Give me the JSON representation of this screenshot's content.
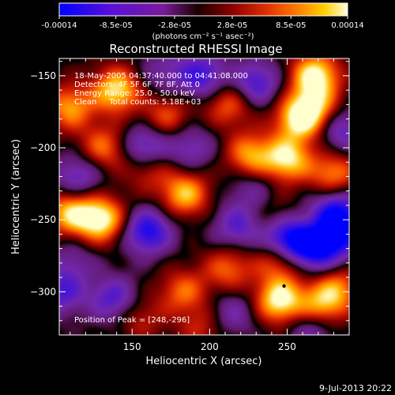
{
  "colorbar": {
    "tick_labels": [
      "-0.00014",
      "-8.5e-05",
      "-2.8e-05",
      "2.8e-05",
      "8.5e-05",
      "0.00014"
    ],
    "tick_values": [
      -0.00014,
      -8.5e-05,
      -2.8e-05,
      2.8e-05,
      8.5e-05,
      0.00014
    ],
    "unit_label": "(photons cm⁻² s⁻¹ asec⁻²)",
    "range": [
      -0.00014,
      0.00014
    ],
    "colors": [
      "#0000ff",
      "#8a2be2",
      "#2a0000",
      "#b41e00",
      "#ff6a00",
      "#ffd000",
      "#ffffe0"
    ]
  },
  "chart_data": {
    "type": "heatmap",
    "title": "Reconstructed RHESSI Image",
    "xlabel": "Heliocentric X (arcsec)",
    "ylabel": "Heliocentric Y (arcsec)",
    "xlim": [
      103,
      290
    ],
    "ylim": [
      -330,
      -138
    ],
    "xticks": [
      150,
      200,
      250
    ],
    "yticks": [
      -150,
      -200,
      -250,
      -300
    ],
    "peak": [
      248,
      -296
    ],
    "annotations": [
      "18-May-2005 04:37:40.000 to 04:41:08.000",
      "Detectors: 4F 5F 6F 7F 8F, Att 0",
      "Energy Range: 25.0 - 50.0 keV",
      "Clean     Total counts: 5.18E+03"
    ],
    "peak_label": "Position of Peak = [248,-296]",
    "blobs": [
      {
        "x": 140,
        "y": -160,
        "v": 0.9
      },
      {
        "x": 110,
        "y": -172,
        "v": 0.7
      },
      {
        "x": 132,
        "y": -200,
        "v": 0.6
      },
      {
        "x": 130,
        "y": -250,
        "v": 1.0
      },
      {
        "x": 110,
        "y": -245,
        "v": 0.8
      },
      {
        "x": 172,
        "y": -178,
        "v": 0.5
      },
      {
        "x": 184,
        "y": -232,
        "v": 0.8
      },
      {
        "x": 183,
        "y": -300,
        "v": 0.55
      },
      {
        "x": 212,
        "y": -284,
        "v": 0.55
      },
      {
        "x": 245,
        "y": -278,
        "v": 0.6
      },
      {
        "x": 226,
        "y": -205,
        "v": 0.7
      },
      {
        "x": 250,
        "y": -208,
        "v": 0.9
      },
      {
        "x": 258,
        "y": -180,
        "v": 0.9
      },
      {
        "x": 268,
        "y": -150,
        "v": 1.0
      },
      {
        "x": 268,
        "y": -172,
        "v": 0.6
      },
      {
        "x": 280,
        "y": -218,
        "v": 0.65
      },
      {
        "x": 212,
        "y": -170,
        "v": 0.55
      },
      {
        "x": 245,
        "y": -306,
        "v": 1.0
      },
      {
        "x": 272,
        "y": -310,
        "v": 0.7
      },
      {
        "x": 283,
        "y": -297,
        "v": 0.55
      },
      {
        "x": 155,
        "y": -318,
        "v": 0.35
      },
      {
        "x": 195,
        "y": -325,
        "v": 0.35
      },
      {
        "x": 160,
        "y": -214,
        "v": 0.45
      },
      {
        "x": 240,
        "y": -245,
        "v": 0.25
      },
      {
        "x": 115,
        "y": -220,
        "v": -0.55
      },
      {
        "x": 158,
        "y": -200,
        "v": -0.7
      },
      {
        "x": 188,
        "y": -200,
        "v": -0.45
      },
      {
        "x": 160,
        "y": -258,
        "v": -0.85
      },
      {
        "x": 104,
        "y": -300,
        "v": -0.6
      },
      {
        "x": 138,
        "y": -305,
        "v": -0.6
      },
      {
        "x": 112,
        "y": -278,
        "v": -0.3
      },
      {
        "x": 218,
        "y": -255,
        "v": -0.55
      },
      {
        "x": 228,
        "y": -230,
        "v": -0.35
      },
      {
        "x": 250,
        "y": -264,
        "v": -1.0
      },
      {
        "x": 268,
        "y": -270,
        "v": -0.9
      },
      {
        "x": 282,
        "y": -245,
        "v": -0.9
      },
      {
        "x": 284,
        "y": -263,
        "v": -0.6
      },
      {
        "x": 195,
        "y": -150,
        "v": -0.7
      },
      {
        "x": 230,
        "y": -155,
        "v": -0.65
      },
      {
        "x": 285,
        "y": -188,
        "v": -0.55
      },
      {
        "x": 170,
        "y": -148,
        "v": -0.35
      },
      {
        "x": 215,
        "y": -315,
        "v": -0.4
      },
      {
        "x": 266,
        "y": -326,
        "v": -0.45
      }
    ]
  },
  "footer": {
    "timestamp": "9-Jul-2013 20:22"
  }
}
